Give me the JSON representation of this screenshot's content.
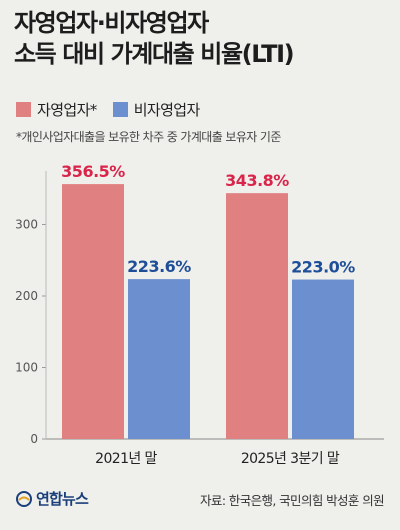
{
  "title": {
    "line1": "자영업자·비자영업자",
    "line2": "소득 대비 가계대출 비율(LTI)"
  },
  "legend": [
    {
      "label": "자영업자*",
      "color": "#e08080"
    },
    {
      "label": "비자영업자",
      "color": "#6b8fcf"
    }
  ],
  "note": "*개인사업자대출을 보유한 차주 중 가계대출 보유자 기준",
  "footer": {
    "logo": "연합뉴스",
    "source": "자료: 한국은행, 국민의힘 박성훈 의원"
  },
  "colors": {
    "self_employed": "#e08080",
    "non_self_employed": "#6b8fcf",
    "self_label": "#d9254a",
    "non_self_label": "#1f4e98"
  },
  "chart_data": {
    "type": "bar",
    "categories": [
      "2021년 말",
      "2025년 3분기 말"
    ],
    "series": [
      {
        "name": "자영업자*",
        "values": [
          356.5,
          343.8
        ],
        "labels": [
          "356.5%",
          "343.8%"
        ]
      },
      {
        "name": "비자영업자",
        "values": [
          223.6,
          223.0
        ],
        "labels": [
          "223.6%",
          "223.0%"
        ]
      }
    ],
    "yticks": [
      0,
      100,
      200,
      300
    ],
    "ylim": [
      0,
      400
    ],
    "grid": false,
    "legend_position": "top-left"
  }
}
